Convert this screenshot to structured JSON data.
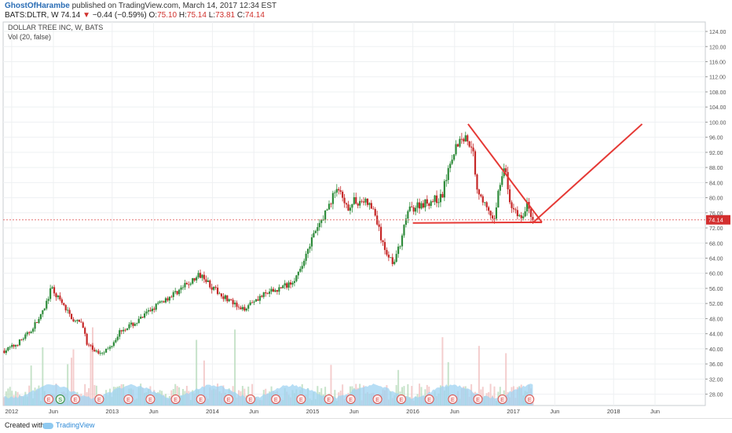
{
  "header": {
    "author": "GhostOfHarambe",
    "published": "published on TradingView.com, March 14, 2017 12:34 EST",
    "symbol": "BATS:DLTR, W",
    "last": "74.14",
    "change": "−0.44 (−0.59%)",
    "o_label": "O:",
    "o_val": "75.10",
    "h_label": "H:",
    "h_val": "75.14",
    "l_label": "L:",
    "l_val": "73.81",
    "c_label": "C:",
    "c_val": "74.14"
  },
  "legend": {
    "title": "DOLLAR TREE INC, W, BATS",
    "vol": "Vol (20, false)"
  },
  "footer": {
    "created_with": "Created with",
    "brand": "TradingView"
  },
  "colors": {
    "up": "#2e8b3a",
    "down": "#c62828",
    "drawing": "#e53935",
    "volume_area": "#9fd3f2",
    "price_line": "#e57373",
    "price_label_bg": "#d32f2f",
    "grid": "#eef0f2"
  },
  "chart_data": {
    "type": "candlestick",
    "title": "DOLLAR TREE INC, W, BATS",
    "interval": "W",
    "y_ticks": [
      28,
      32,
      36,
      40,
      44,
      48,
      52,
      56,
      60,
      64,
      68,
      72,
      76,
      80,
      84,
      88,
      92,
      96,
      100,
      104,
      108,
      112,
      116,
      120,
      124
    ],
    "ylim": [
      25,
      126.5
    ],
    "x_ticks": [
      "2012",
      "Jun",
      "2013",
      "Jun",
      "2014",
      "Jun",
      "2015",
      "Jun",
      "2016",
      "Jun",
      "2017",
      "Jun",
      "2018",
      "Jun"
    ],
    "x_tick_dates": [
      "2012-01-01",
      "2012-06-01",
      "2013-01-01",
      "2013-06-01",
      "2014-01-01",
      "2014-06-01",
      "2015-01-01",
      "2015-06-01",
      "2016-01-01",
      "2016-06-01",
      "2017-01-01",
      "2017-06-01",
      "2018-01-01",
      "2018-06-01"
    ],
    "xlim": [
      "2011-12-01",
      "2018-12-01"
    ],
    "last_price": 74.14,
    "price_path": [
      [
        "2011-12-05",
        39.5
      ],
      [
        "2012-01-15",
        41
      ],
      [
        "2012-03-01",
        44
      ],
      [
        "2012-04-20",
        49
      ],
      [
        "2012-05-10",
        53
      ],
      [
        "2012-05-25",
        56
      ],
      [
        "2012-07-01",
        52
      ],
      [
        "2012-08-20",
        47
      ],
      [
        "2012-09-15",
        47
      ],
      [
        "2012-10-01",
        41
      ],
      [
        "2012-11-10",
        39
      ],
      [
        "2012-12-20",
        40
      ],
      [
        "2013-02-01",
        45
      ],
      [
        "2013-04-01",
        47
      ],
      [
        "2013-06-01",
        51
      ],
      [
        "2013-08-01",
        54
      ],
      [
        "2013-10-01",
        57
      ],
      [
        "2013-11-25",
        60
      ],
      [
        "2014-01-01",
        56
      ],
      [
        "2014-03-01",
        53
      ],
      [
        "2014-04-15",
        50
      ],
      [
        "2014-06-01",
        53
      ],
      [
        "2014-08-01",
        55
      ],
      [
        "2014-10-01",
        57
      ],
      [
        "2014-11-15",
        60
      ],
      [
        "2014-12-15",
        67
      ],
      [
        "2015-01-20",
        72
      ],
      [
        "2015-03-01",
        78
      ],
      [
        "2015-04-01",
        83
      ],
      [
        "2015-05-01",
        77
      ],
      [
        "2015-06-01",
        79
      ],
      [
        "2015-07-15",
        79
      ],
      [
        "2015-08-15",
        76
      ],
      [
        "2015-09-15",
        67
      ],
      [
        "2015-10-20",
        63
      ],
      [
        "2015-11-20",
        68
      ],
      [
        "2015-12-10",
        76
      ],
      [
        "2016-01-15",
        78
      ],
      [
        "2016-03-01",
        79
      ],
      [
        "2016-04-15",
        80
      ],
      [
        "2016-05-15",
        90
      ],
      [
        "2016-06-15",
        95
      ],
      [
        "2016-07-10",
        96
      ],
      [
        "2016-08-05",
        94
      ],
      [
        "2016-08-20",
        83
      ],
      [
        "2016-09-20",
        78
      ],
      [
        "2016-10-20",
        73
      ],
      [
        "2016-11-15",
        85
      ],
      [
        "2016-12-01",
        88
      ],
      [
        "2016-12-20",
        78
      ],
      [
        "2017-01-15",
        76
      ],
      [
        "2017-02-05",
        74
      ],
      [
        "2017-02-20",
        79
      ],
      [
        "2017-03-13",
        74.14
      ]
    ],
    "drawings": [
      {
        "type": "trendline",
        "from": [
          "2016-07-20",
          99.5
        ],
        "to": [
          "2017-04-15",
          73.5
        ]
      },
      {
        "type": "trendline",
        "from": [
          "2016-01-01",
          73.3
        ],
        "to": [
          "2017-04-15",
          73.5
        ]
      },
      {
        "type": "trendline",
        "from": [
          "2017-03-01",
          73.5
        ],
        "to": [
          "2017-04-15",
          73.5
        ]
      },
      {
        "type": "trendline",
        "from": [
          "2017-03-15",
          73.5
        ],
        "to": [
          "2018-04-15",
          99.5
        ]
      }
    ],
    "earnings_markers": [
      "2012-05-15",
      "2012-08-20",
      "2012-11-15",
      "2013-03-01",
      "2013-05-20",
      "2013-08-20",
      "2013-11-20",
      "2014-03-01",
      "2014-05-20",
      "2014-08-20",
      "2014-11-20",
      "2015-03-01",
      "2015-05-20",
      "2015-08-25",
      "2015-11-20",
      "2016-03-01",
      "2016-05-25",
      "2016-08-25",
      "2016-11-22",
      "2017-03-01"
    ],
    "split_markers": [
      "2012-06-26"
    ],
    "earnings_label": "E",
    "split_label": "S"
  }
}
